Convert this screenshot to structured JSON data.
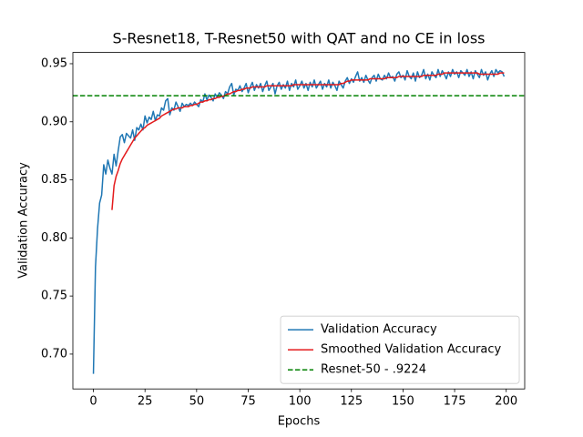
{
  "chart_data": {
    "type": "line",
    "title": "S-Resnet18, T-Resnet50 with QAT and no CE in loss",
    "xlabel": "Epochs",
    "ylabel": "Validation Accuracy",
    "x": [
      0,
      1,
      2,
      3,
      4,
      5,
      6,
      7,
      8,
      9,
      10,
      11,
      12,
      13,
      14,
      15,
      16,
      17,
      18,
      19,
      20,
      21,
      22,
      23,
      24,
      25,
      26,
      27,
      28,
      29,
      30,
      31,
      32,
      33,
      34,
      35,
      36,
      37,
      38,
      39,
      40,
      41,
      42,
      43,
      44,
      45,
      46,
      47,
      48,
      49,
      50,
      51,
      52,
      53,
      54,
      55,
      56,
      57,
      58,
      59,
      60,
      61,
      62,
      63,
      64,
      65,
      66,
      67,
      68,
      69,
      70,
      71,
      72,
      73,
      74,
      75,
      76,
      77,
      78,
      79,
      80,
      81,
      82,
      83,
      84,
      85,
      86,
      87,
      88,
      89,
      90,
      91,
      92,
      93,
      94,
      95,
      96,
      97,
      98,
      99,
      100,
      101,
      102,
      103,
      104,
      105,
      106,
      107,
      108,
      109,
      110,
      111,
      112,
      113,
      114,
      115,
      116,
      117,
      118,
      119,
      120,
      121,
      122,
      123,
      124,
      125,
      126,
      127,
      128,
      129,
      130,
      131,
      132,
      133,
      134,
      135,
      136,
      137,
      138,
      139,
      140,
      141,
      142,
      143,
      144,
      145,
      146,
      147,
      148,
      149,
      150,
      151,
      152,
      153,
      154,
      155,
      156,
      157,
      158,
      159,
      160,
      161,
      162,
      163,
      164,
      165,
      166,
      167,
      168,
      169,
      170,
      171,
      172,
      173,
      174,
      175,
      176,
      177,
      178,
      179,
      180,
      181,
      182,
      183,
      184,
      185,
      186,
      187,
      188,
      189,
      190,
      191,
      192,
      193,
      194,
      195,
      196,
      197,
      198,
      199
    ],
    "series": [
      {
        "name": "Validation Accuracy",
        "color": "#1f77b4",
        "values": [
          0.683,
          0.775,
          0.808,
          0.83,
          0.837,
          0.863,
          0.855,
          0.867,
          0.86,
          0.855,
          0.872,
          0.862,
          0.875,
          0.887,
          0.889,
          0.882,
          0.89,
          0.888,
          0.886,
          0.893,
          0.884,
          0.895,
          0.893,
          0.898,
          0.893,
          0.905,
          0.899,
          0.904,
          0.902,
          0.909,
          0.901,
          0.906,
          0.905,
          0.912,
          0.91,
          0.918,
          0.92,
          0.906,
          0.912,
          0.91,
          0.917,
          0.913,
          0.909,
          0.916,
          0.913,
          0.915,
          0.914,
          0.916,
          0.914,
          0.917,
          0.915,
          0.913,
          0.919,
          0.917,
          0.924,
          0.919,
          0.923,
          0.921,
          0.918,
          0.924,
          0.921,
          0.925,
          0.923,
          0.92,
          0.926,
          0.924,
          0.93,
          0.933,
          0.923,
          0.928,
          0.927,
          0.931,
          0.926,
          0.929,
          0.933,
          0.925,
          0.93,
          0.934,
          0.927,
          0.932,
          0.929,
          0.933,
          0.926,
          0.931,
          0.935,
          0.927,
          0.93,
          0.933,
          0.924,
          0.931,
          0.934,
          0.928,
          0.932,
          0.929,
          0.935,
          0.927,
          0.933,
          0.93,
          0.936,
          0.928,
          0.931,
          0.935,
          0.929,
          0.933,
          0.927,
          0.934,
          0.93,
          0.936,
          0.929,
          0.932,
          0.935,
          0.928,
          0.933,
          0.93,
          0.936,
          0.929,
          0.934,
          0.931,
          0.927,
          0.935,
          0.932,
          0.929,
          0.935,
          0.938,
          0.933,
          0.937,
          0.934,
          0.939,
          0.943,
          0.935,
          0.938,
          0.934,
          0.94,
          0.936,
          0.933,
          0.938,
          0.94,
          0.935,
          0.941,
          0.937,
          0.936,
          0.94,
          0.937,
          0.942,
          0.938,
          0.939,
          0.935,
          0.941,
          0.943,
          0.938,
          0.94,
          0.936,
          0.944,
          0.939,
          0.937,
          0.942,
          0.935,
          0.943,
          0.938,
          0.94,
          0.945,
          0.937,
          0.941,
          0.936,
          0.943,
          0.94,
          0.938,
          0.945,
          0.939,
          0.944,
          0.941,
          0.937,
          0.943,
          0.939,
          0.945,
          0.941,
          0.943,
          0.938,
          0.944,
          0.942,
          0.94,
          0.945,
          0.939,
          0.943,
          0.937,
          0.944,
          0.941,
          0.938,
          0.945,
          0.94,
          0.943,
          0.936,
          0.941,
          0.944,
          0.939,
          0.945,
          0.942,
          0.944,
          0.943,
          0.939
        ]
      },
      {
        "name": "Smoothed Validation Accuracy",
        "color": "#e41a1c",
        "values": [
          null,
          null,
          null,
          null,
          null,
          null,
          null,
          null,
          null,
          0.824,
          0.845,
          0.853,
          0.858,
          0.864,
          0.868,
          0.871,
          0.874,
          0.877,
          0.88,
          0.883,
          0.886,
          0.888,
          0.89,
          0.892,
          0.894,
          0.895,
          0.897,
          0.898,
          0.899,
          0.9,
          0.901,
          0.902,
          0.903,
          0.905,
          0.906,
          0.907,
          0.908,
          0.909,
          0.91,
          0.911,
          0.911,
          0.912,
          0.912,
          0.912,
          0.913,
          0.913,
          0.913,
          0.914,
          0.914,
          0.915,
          0.915,
          0.916,
          0.917,
          0.917,
          0.918,
          0.918,
          0.919,
          0.919,
          0.92,
          0.92,
          0.921,
          0.921,
          0.922,
          0.922,
          0.923,
          0.924,
          0.924,
          0.925,
          0.926,
          0.926,
          0.927,
          0.927,
          0.928,
          0.928,
          0.929,
          0.929,
          0.929,
          0.93,
          0.93,
          0.93,
          0.93,
          0.93,
          0.93,
          0.93,
          0.931,
          0.931,
          0.931,
          0.931,
          0.931,
          0.931,
          0.931,
          0.931,
          0.931,
          0.931,
          0.931,
          0.931,
          0.931,
          0.932,
          0.932,
          0.932,
          0.932,
          0.932,
          0.932,
          0.932,
          0.932,
          0.932,
          0.932,
          0.932,
          0.932,
          0.932,
          0.932,
          0.932,
          0.932,
          0.932,
          0.932,
          0.932,
          0.932,
          0.932,
          0.932,
          0.932,
          0.933,
          0.933,
          0.934,
          0.935,
          0.935,
          0.936,
          0.936,
          0.936,
          0.936,
          0.936,
          0.936,
          0.936,
          0.936,
          0.936,
          0.937,
          0.937,
          0.937,
          0.937,
          0.937,
          0.937,
          0.937,
          0.937,
          0.938,
          0.938,
          0.938,
          0.938,
          0.938,
          0.938,
          0.939,
          0.939,
          0.939,
          0.939,
          0.939,
          0.939,
          0.939,
          0.939,
          0.939,
          0.939,
          0.939,
          0.939,
          0.94,
          0.94,
          0.94,
          0.94,
          0.94,
          0.94,
          0.94,
          0.941,
          0.941,
          0.941,
          0.942,
          0.942,
          0.942,
          0.942,
          0.942,
          0.942,
          0.942,
          0.942,
          0.942,
          0.942,
          0.942,
          0.942,
          0.942,
          0.942,
          0.942,
          0.942,
          0.942,
          0.941,
          0.941,
          0.941,
          0.941,
          0.941,
          0.941,
          0.941,
          0.941,
          0.941,
          0.941,
          0.942,
          0.942,
          0.942
        ]
      },
      {
        "name": "Resnet-50 - .9224",
        "color": "#008000",
        "y": 0.9224,
        "dashed": true
      }
    ],
    "xlim": [
      -9.95,
      208.95
    ],
    "xticks": [
      0,
      25,
      50,
      75,
      100,
      125,
      150,
      175,
      200
    ],
    "ylim": [
      0.67,
      0.9597
    ],
    "yticks": [
      {
        "value": 0.7,
        "label": "0.70"
      },
      {
        "value": 0.75,
        "label": "0.75"
      },
      {
        "value": 0.8,
        "label": "0.80"
      },
      {
        "value": 0.85,
        "label": "0.85"
      },
      {
        "value": 0.9,
        "label": "0.90"
      },
      {
        "value": 0.95,
        "label": "0.95"
      }
    ],
    "legend": "lower right",
    "grid": false
  }
}
